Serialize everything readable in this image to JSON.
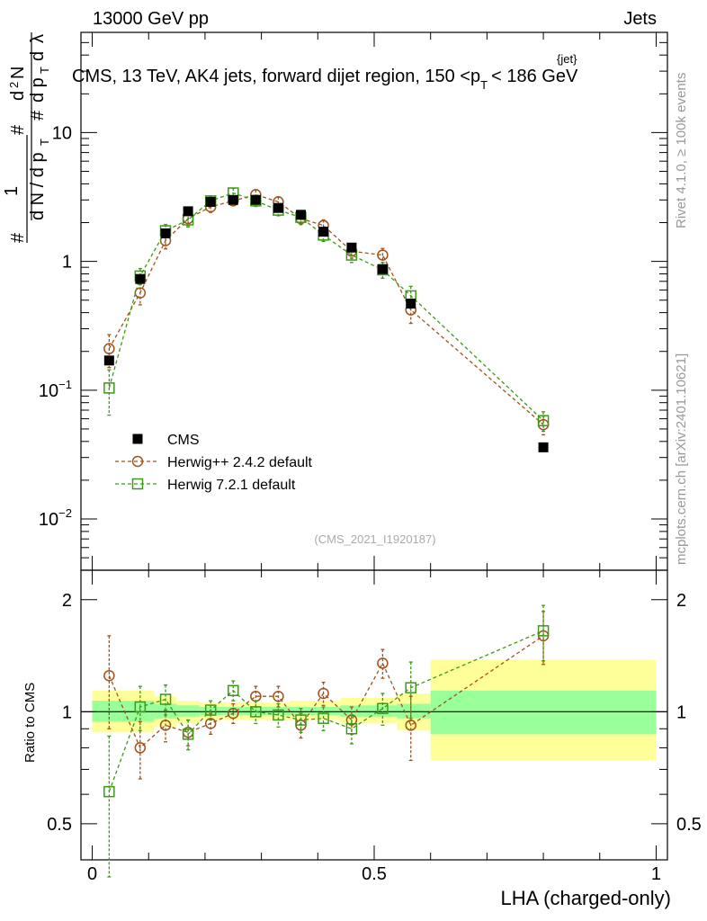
{
  "header": {
    "left": "13000 GeV pp",
    "right": "Jets",
    "title": "CMS, 13 TeV, AK4 jets, forward dijet region, 150 <p",
    "title_sup": "{jet}",
    "title_sub": "T",
    "title_end": "< 186 GeV"
  },
  "side": {
    "rivet": "Rivet 4.1.0, ≥ 100k events",
    "mcplots": "mcplots.cern.ch [arXiv:2401.10621]"
  },
  "watermark": "(CMS_2021_I1920187)",
  "ylabel_main": "1 / dN/dpT d²N/dpT dλ",
  "ylabel_ratio": "Ratio to CMS",
  "xlabel": "LHA (charged-only)",
  "colors": {
    "data": "#000000",
    "herwigpp": "#a0521d",
    "herwig7": "#3c9a16",
    "band_inner": "#99ff99",
    "band_outer": "#ffff99"
  },
  "legend": [
    {
      "label": "CMS",
      "marker": "square-filled"
    },
    {
      "label": "Herwig++ 2.4.2 default",
      "marker": "circle-open"
    },
    {
      "label": "Herwig 7.2.1 default",
      "marker": "square-open"
    }
  ],
  "chart_data": {
    "type": "scatter",
    "x": [
      0.03,
      0.085,
      0.13,
      0.17,
      0.21,
      0.25,
      0.29,
      0.33,
      0.37,
      0.41,
      0.46,
      0.515,
      0.565,
      0.8
    ],
    "main": {
      "yscale": "log",
      "ylim": [
        0.004,
        60
      ],
      "yticks": [
        {
          "value": 0.01,
          "base": "10",
          "exp": "−2"
        },
        {
          "value": 0.1,
          "base": "10",
          "exp": "−1"
        },
        {
          "value": 1,
          "base": "1",
          "exp": ""
        },
        {
          "value": 10,
          "base": "10",
          "exp": ""
        }
      ],
      "series": [
        {
          "name": "CMS",
          "values": [
            0.17,
            0.73,
            1.65,
            2.45,
            2.9,
            3.0,
            3.0,
            2.6,
            2.3,
            1.7,
            1.28,
            0.87,
            0.47,
            0.036
          ]
        },
        {
          "name": "Herwig++ 2.4.2 default",
          "values": [
            0.21,
            0.57,
            1.45,
            2.15,
            2.65,
            2.95,
            3.3,
            2.9,
            2.15,
            1.9,
            1.2,
            1.12,
            0.42,
            0.054
          ],
          "err": [
            0.06,
            0.11,
            0.2,
            0.25,
            0.25,
            0.25,
            0.3,
            0.27,
            0.22,
            0.2,
            0.14,
            0.14,
            0.09,
            0.009
          ]
        },
        {
          "name": "Herwig 7.2.1 default",
          "values": [
            0.104,
            0.77,
            1.73,
            2.1,
            2.95,
            3.4,
            2.95,
            2.5,
            2.2,
            1.6,
            1.12,
            0.86,
            0.54,
            0.058
          ],
          "err": [
            0.04,
            0.11,
            0.2,
            0.25,
            0.25,
            0.3,
            0.28,
            0.24,
            0.22,
            0.17,
            0.14,
            0.12,
            0.1,
            0.01
          ]
        }
      ]
    },
    "ratio": {
      "yscale": "log",
      "ylim": [
        0.4,
        2.4
      ],
      "yticks": [
        {
          "value": 0.5,
          "label": "0.5"
        },
        {
          "value": 1,
          "label": "1"
        },
        {
          "value": 2,
          "label": "2"
        }
      ],
      "bands": [
        {
          "x0": 0.0,
          "x1": 0.11,
          "inner": [
            0.94,
            1.07
          ],
          "outer": [
            0.88,
            1.14
          ]
        },
        {
          "x0": 0.11,
          "x1": 0.15,
          "inner": [
            0.96,
            1.05
          ],
          "outer": [
            0.91,
            1.1
          ]
        },
        {
          "x0": 0.15,
          "x1": 0.19,
          "inner": [
            0.97,
            1.04
          ],
          "outer": [
            0.93,
            1.07
          ]
        },
        {
          "x0": 0.19,
          "x1": 0.35,
          "inner": [
            0.98,
            1.03
          ],
          "outer": [
            0.95,
            1.06
          ]
        },
        {
          "x0": 0.35,
          "x1": 0.44,
          "inner": [
            0.98,
            1.03
          ],
          "outer": [
            0.95,
            1.07
          ]
        },
        {
          "x0": 0.44,
          "x1": 0.54,
          "inner": [
            0.97,
            1.04
          ],
          "outer": [
            0.93,
            1.09
          ]
        },
        {
          "x0": 0.54,
          "x1": 0.6,
          "inner": [
            0.96,
            1.05
          ],
          "outer": [
            0.89,
            1.12
          ]
        },
        {
          "x0": 0.6,
          "x1": 1.0,
          "inner": [
            0.87,
            1.14
          ],
          "outer": [
            0.74,
            1.38
          ]
        }
      ],
      "series": [
        {
          "name": "Herwig++ 2.4.2 default",
          "values": [
            1.25,
            0.8,
            0.92,
            0.88,
            0.93,
            0.99,
            1.1,
            1.1,
            0.92,
            1.12,
            0.95,
            1.35,
            0.92,
            1.6
          ],
          "err": [
            0.35,
            0.14,
            0.09,
            0.07,
            0.06,
            0.06,
            0.07,
            0.07,
            0.07,
            0.08,
            0.08,
            0.12,
            0.18,
            0.26
          ]
        },
        {
          "name": "Herwig 7.2.1 default",
          "values": [
            0.61,
            1.03,
            1.08,
            0.87,
            1.01,
            1.14,
            1.0,
            0.98,
            0.95,
            0.96,
            0.9,
            1.02,
            1.16,
            1.65
          ],
          "err": [
            0.25,
            0.14,
            0.1,
            0.08,
            0.06,
            0.07,
            0.07,
            0.07,
            0.07,
            0.07,
            0.08,
            0.1,
            0.2,
            0.28
          ]
        }
      ]
    },
    "xaxis": {
      "lim": [
        -0.02,
        1.02
      ],
      "ticks": [
        {
          "value": 0,
          "label": "0"
        },
        {
          "value": 0.5,
          "label": "0.5"
        },
        {
          "value": 1,
          "label": "1"
        }
      ]
    }
  }
}
